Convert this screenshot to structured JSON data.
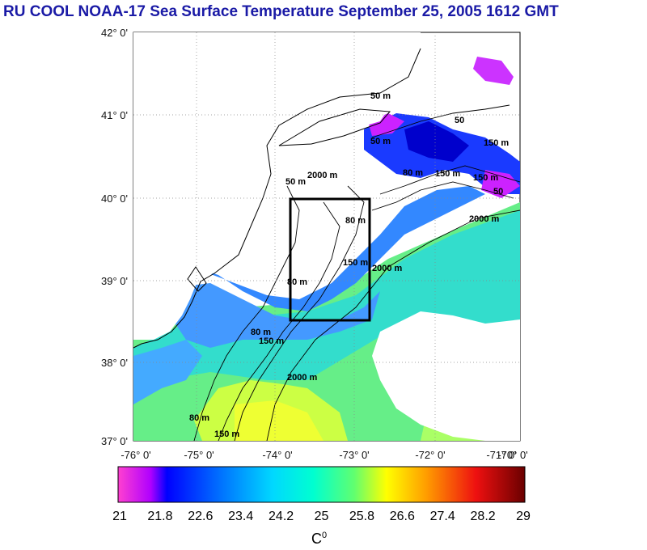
{
  "title": "RU COOL  NOAA-17 Sea Surface Temperature September 25, 2005 1612 GMT",
  "lat_labels": [
    "42° 0'",
    "41° 0'",
    "40° 0'",
    "39° 0'",
    "38° 0'",
    "37° 0'"
  ],
  "lon_labels": [
    "-76° 0'",
    "-75° 0'",
    "-74° 0'",
    "-73° 0'",
    "-72° 0'",
    "-71° 0'",
    "-70° 0'"
  ],
  "contour_labels": [
    "50 m",
    "50 m",
    "50 m",
    "80 m",
    "150 m",
    "80 m",
    "150 m",
    "2000 m",
    "2000 m",
    "50",
    "150 m",
    "80 m",
    "150 m",
    "2000 m",
    "80 m",
    "150 m",
    "80 m",
    "150 m",
    "2000 m",
    "50"
  ],
  "colorbar": {
    "min": 21,
    "max": 29,
    "ticks": [
      "21",
      "21.8",
      "22.6",
      "23.4",
      "24.2",
      "25",
      "25.8",
      "26.6",
      "27.4",
      "28.2",
      "29"
    ],
    "unit": "C",
    "unit_sup": "0",
    "colors": [
      "#ff33cc",
      "#cc00ff",
      "#0000ff",
      "#0066ff",
      "#00ccff",
      "#00ffcc",
      "#33ff99",
      "#99ff33",
      "#ffff00",
      "#ffaa00",
      "#ff5500",
      "#ee0000",
      "#aa0000",
      "#660000"
    ]
  }
}
